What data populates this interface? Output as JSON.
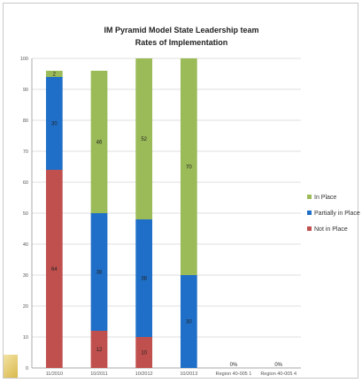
{
  "chart_data": {
    "type": "bar",
    "stacked": true,
    "title": [
      "IM Pyramid Model State Leadership team",
      "Rates of Implementation"
    ],
    "categories": [
      "11/2010",
      "10/2011",
      "10/2012",
      "10/2013",
      "Region 40-005 1",
      "Region 40-005 4"
    ],
    "series": [
      {
        "name": "Not in Place",
        "color": "#c0504d",
        "values": [
          64,
          12,
          10,
          0,
          0,
          0
        ],
        "value_labels": [
          "64",
          "12",
          "10",
          "",
          "",
          ""
        ]
      },
      {
        "name": "Partially in Place",
        "color": "#1f6fc8",
        "values": [
          30,
          38,
          38,
          30,
          0,
          0
        ],
        "value_labels": [
          "30",
          "38",
          "38",
          "30",
          "",
          ""
        ]
      },
      {
        "name": "In Place",
        "color": "#9bbb59",
        "values": [
          2,
          46,
          52,
          70,
          0,
          0
        ],
        "value_labels": [
          "2",
          "46",
          "52",
          "70",
          "",
          ""
        ]
      }
    ],
    "zero_labels": [
      "",
      "",
      "",
      "",
      "0%",
      "0%"
    ],
    "yticks": [
      "0",
      "10",
      "20",
      "30",
      "40",
      "50",
      "60",
      "70",
      "80",
      "90",
      "100"
    ],
    "ylim": [
      0,
      100
    ],
    "grid": true,
    "legend_position": "right"
  }
}
